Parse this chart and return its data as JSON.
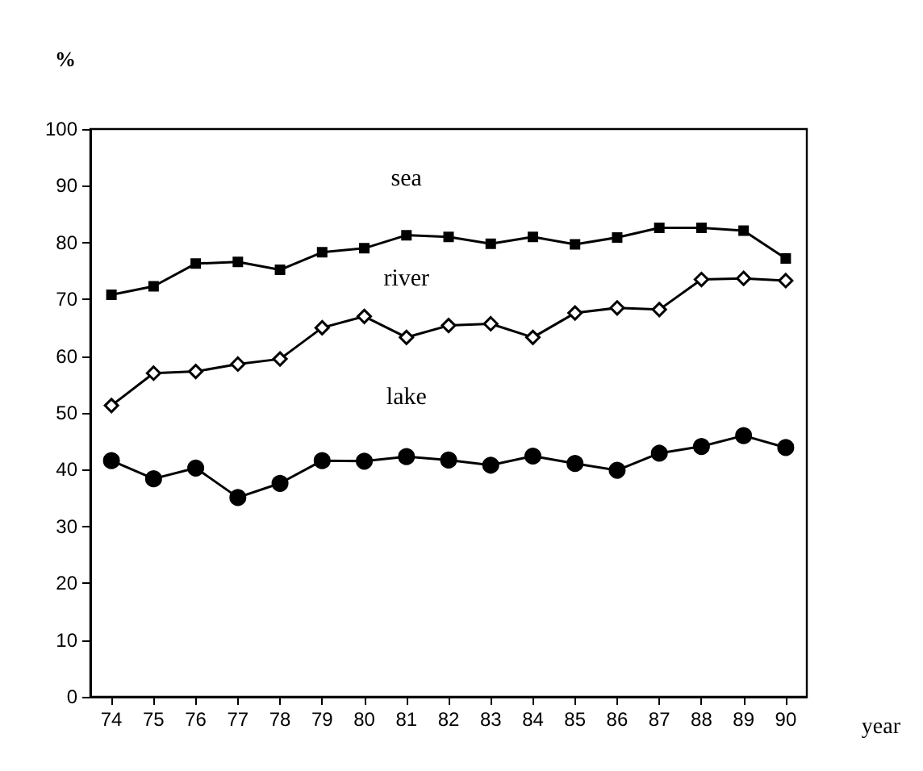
{
  "chart_data": {
    "type": "line",
    "ylabel": "%",
    "xlabel": "year",
    "categories": [
      "74",
      "75",
      "76",
      "77",
      "78",
      "79",
      "80",
      "81",
      "82",
      "83",
      "84",
      "85",
      "86",
      "87",
      "88",
      "89",
      "90"
    ],
    "ylim": [
      0,
      100
    ],
    "yticks": [
      0,
      10,
      20,
      30,
      40,
      50,
      60,
      70,
      80,
      90,
      100
    ],
    "grid": false,
    "legend": false,
    "line_style": "solid",
    "series": [
      {
        "name": "sea",
        "color": "#000000",
        "marker": "square",
        "values": [
          70.8,
          72.3,
          76.3,
          76.6,
          75.2,
          78.3,
          79,
          81.3,
          81,
          79.8,
          81,
          79.7,
          80.9,
          82.6,
          82.6,
          82.1,
          77.2
        ]
      },
      {
        "name": "river",
        "color": "#000000",
        "marker": "diamond",
        "values": [
          51.3,
          57,
          57.3,
          58.6,
          59.5,
          65,
          67,
          63.3,
          65.4,
          65.7,
          63.3,
          67.6,
          68.5,
          68.2,
          73.5,
          73.7,
          73.3
        ]
      },
      {
        "name": "lake",
        "color": "#000000",
        "marker": "circle",
        "values": [
          41.6,
          38.4,
          40.3,
          35.1,
          37.6,
          41.6,
          41.5,
          42.3,
          41.7,
          40.8,
          42.4,
          41.1,
          39.9,
          42.9,
          44.1,
          46,
          43.9
        ]
      }
    ]
  }
}
